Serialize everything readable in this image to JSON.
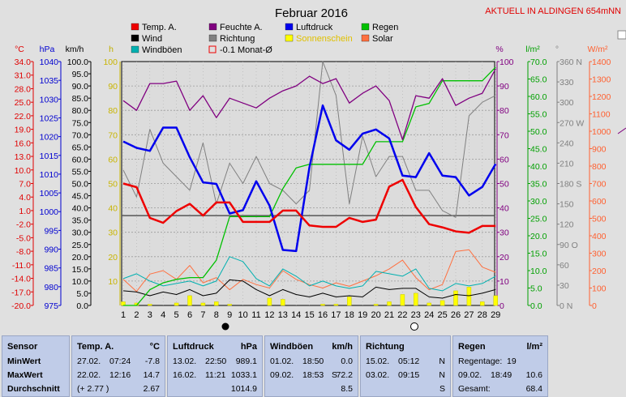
{
  "title": "Februar 2016",
  "station": "AKTUELL IN ALDINGEN 654mNN",
  "legend": [
    {
      "label": "Temp. A.",
      "color": "#ee0000"
    },
    {
      "label": "Wind",
      "color": "#000000"
    },
    {
      "label": "Windböen",
      "color": "#00b0b0"
    },
    {
      "label": "Feuchte A.",
      "color": "#800080"
    },
    {
      "label": "Richtung",
      "color": "#808080"
    },
    {
      "label": "-0.1 Monat-Ø",
      "color": "#ee0000"
    },
    {
      "label": "Luftdruck",
      "color": "#0000ee"
    },
    {
      "label": "Sonnenschein",
      "color": "#ffff00"
    },
    {
      "label": "Regen",
      "color": "#00c000"
    },
    {
      "label": "Solar",
      "color": "#ff7040"
    }
  ],
  "axis_units": {
    "temp": "°C",
    "press": "hPa",
    "wind": "km/h",
    "sun": "h",
    "hum": "%",
    "rain": "l/m²",
    "dir": "°",
    "solar": "W/m²"
  },
  "axes": {
    "temp_ticks": [
      "34.0",
      "31.0",
      "28.0",
      "25.0",
      "22.0",
      "19.0",
      "16.0",
      "13.0",
      "10.0",
      "7.0",
      "4.0",
      "1.0",
      "-2.0",
      "-5.0",
      "-8.0",
      "-11.0",
      "-14.0",
      "-17.0",
      "-20.0"
    ],
    "press_ticks": [
      "1040",
      "1035",
      "1030",
      "1025",
      "1020",
      "1015",
      "1010",
      "1005",
      "1000",
      "995",
      "990",
      "985",
      "980",
      "975"
    ],
    "wind_ticks": [
      "100.0",
      "95.0",
      "90.0",
      "85.0",
      "80.0",
      "75.0",
      "70.0",
      "65.0",
      "60.0",
      "55.0",
      "50.0",
      "45.0",
      "40.0",
      "35.0",
      "30.0",
      "25.0",
      "20.0",
      "15.0",
      "10.0",
      "5.0",
      "0.0"
    ],
    "sun_ticks": [
      "100",
      "90",
      "80",
      "70",
      "60",
      "50",
      "40",
      "30",
      "20",
      "10"
    ],
    "hum_ticks": [
      "100",
      "90",
      "80",
      "70",
      "60",
      "50",
      "40",
      "30",
      "20",
      "10",
      "0"
    ],
    "rain_ticks": [
      "70.0",
      "65.0",
      "60.0",
      "55.0",
      "50.0",
      "45.0",
      "40.0",
      "35.0",
      "30.0",
      "25.0",
      "20.0",
      "15.0",
      "10.0",
      "5.0",
      "0.0"
    ],
    "dir_ticks": [
      "360 N",
      "330",
      "300",
      "270 W",
      "240",
      "210",
      "180 S",
      "150",
      "120",
      "90 O",
      "60",
      "30",
      "0 N"
    ],
    "solar_ticks": [
      "1400",
      "1300",
      "1200",
      "1100",
      "1000",
      "900",
      "800",
      "700",
      "600",
      "500",
      "400",
      "300",
      "200",
      "100",
      "0"
    ],
    "day_labels": [
      "1",
      "2",
      "3",
      "4",
      "5",
      "6",
      "7",
      "8",
      "9",
      "10",
      "11",
      "12",
      "13",
      "14",
      "15",
      "16",
      "17",
      "18",
      "19",
      "20",
      "21",
      "22",
      "23",
      "24",
      "25",
      "26",
      "27",
      "28",
      "29"
    ]
  },
  "chart_data": {
    "type": "line",
    "x": [
      1,
      2,
      3,
      4,
      5,
      6,
      7,
      8,
      9,
      10,
      11,
      12,
      13,
      14,
      15,
      16,
      17,
      18,
      19,
      20,
      21,
      22,
      23,
      24,
      25,
      26,
      27,
      28,
      29
    ],
    "month_avg_temp": -0.1,
    "series": [
      {
        "name": "Temp. A.",
        "unit": "°C",
        "values": [
          7.0,
          6.2,
          -0.6,
          -1.7,
          0.9,
          2.5,
          -0.1,
          2.8,
          2.8,
          -1.5,
          -1.5,
          -1.5,
          1.0,
          1.0,
          -2.3,
          -2.6,
          -2.6,
          -0.6,
          -1.5,
          -1.0,
          6.3,
          7.8,
          1.8,
          -2.0,
          -2.7,
          -3.6,
          -3.9,
          -2.4,
          -2.4
        ]
      },
      {
        "name": "Feuchte A.",
        "unit": "%",
        "values": [
          84,
          80,
          91,
          91,
          92,
          80,
          86,
          77,
          85,
          83,
          81,
          85,
          88,
          90,
          94,
          91,
          93,
          83,
          87,
          90,
          84,
          68,
          86,
          85,
          93,
          82,
          85,
          87,
          97
        ]
      },
      {
        "name": "Luftdruck",
        "unit": "hPa",
        "values": [
          1018.7,
          1017.0,
          1016.2,
          1022.4,
          1022.4,
          1014.5,
          1007.8,
          1007.4,
          999.5,
          1000.4,
          1008.1,
          1001.6,
          989.8,
          989.5,
          1011.8,
          1028.3,
          1019.0,
          1016.5,
          1020.8,
          1021.9,
          1019.5,
          1009.6,
          1009.2,
          1015.6,
          1009.6,
          1009.2,
          1004.3,
          1006.6,
          1012.7
        ]
      },
      {
        "name": "Richtung",
        "unit": "°",
        "values": [
          200,
          160,
          260,
          210,
          190,
          170,
          240,
          150,
          210,
          180,
          220,
          180,
          170,
          150,
          170,
          360,
          310,
          150,
          250,
          190,
          220,
          220,
          170,
          170,
          140,
          130,
          280,
          300,
          310
        ]
      },
      {
        "name": "Regen",
        "unit": "l/m²",
        "values": [
          0.0,
          0.0,
          4.5,
          6.5,
          7.5,
          8.0,
          8.0,
          13.0,
          25.5,
          25.5,
          25.5,
          25.5,
          33.5,
          39.5,
          40.5,
          40.5,
          40.5,
          40.5,
          40.5,
          47.0,
          47.0,
          47.0,
          57.0,
          58.0,
          64.5,
          64.5,
          64.5,
          64.5,
          68.4
        ]
      },
      {
        "name": "Wind",
        "unit": "km/h",
        "values": [
          6.0,
          5.5,
          4.0,
          5.5,
          4.5,
          6.5,
          4.0,
          5.0,
          10.5,
          10.0,
          6.5,
          4.0,
          6.5,
          4.5,
          3.5,
          5.0,
          3.5,
          4.0,
          3.5,
          7.5,
          6.5,
          7.0,
          7.0,
          3.5,
          3.0,
          4.5,
          4.0,
          5.0,
          6.5
        ]
      },
      {
        "name": "Windböen",
        "unit": "km/h",
        "values": [
          11,
          13,
          10,
          8,
          9,
          10,
          8,
          10,
          20,
          18,
          11,
          8,
          15,
          12,
          8,
          10,
          8,
          7,
          8,
          14,
          13,
          12,
          15,
          7,
          6,
          9,
          8,
          9,
          12
        ]
      },
      {
        "name": "Solar",
        "unit": "W/m²",
        "values": [
          150,
          80,
          180,
          200,
          150,
          230,
          130,
          160,
          90,
          150,
          120,
          100,
          200,
          150,
          120,
          100,
          130,
          110,
          140,
          170,
          210,
          260,
          160,
          90,
          120,
          310,
          320,
          220,
          190
        ]
      },
      {
        "name": "Sonnenschein",
        "unit": "h",
        "values": [
          1.5,
          1.0,
          0.5,
          0.0,
          1.0,
          4.0,
          1.0,
          1.5,
          0.5,
          0.0,
          0.0,
          3.0,
          2.5,
          0.0,
          0.0,
          0.5,
          0.5,
          3.5,
          0.0,
          0.5,
          1.5,
          4.5,
          5.0,
          1.0,
          2.0,
          6.0,
          7.5,
          1.5,
          4.0
        ]
      }
    ]
  },
  "stats": {
    "row_labels": {
      "sensor": "Sensor",
      "min": "MinWert",
      "max": "MaxWert",
      "avg": "Durchschnitt"
    },
    "temp": {
      "header": "Temp. A.",
      "unit": "°C",
      "min_date": "27.02.",
      "min_time": "07:24",
      "min_val": "-7.8",
      "max_date": "22.02.",
      "max_time": "12:16",
      "max_val": "14.7",
      "avg_note": "(+ 2.77 )",
      "avg_val": "2.67"
    },
    "press": {
      "header": "Luftdruck",
      "unit": "hPa",
      "min_date": "13.02.",
      "min_time": "22:50",
      "min_val": "989.1",
      "max_date": "16.02.",
      "max_time": "11:21",
      "max_val": "1033.1",
      "avg_val": "1014.9"
    },
    "gust": {
      "header": "Windböen",
      "unit": "km/h",
      "min_date": "01.02.",
      "min_time": "18:50",
      "min_val": "0.0",
      "max_date": "09.02.",
      "max_time": "18:53",
      "max_dir": "S",
      "max_val": "72.2",
      "avg_val": "8.5"
    },
    "dir": {
      "header": "Richtung",
      "min_date": "15.02.",
      "min_time": "05:12",
      "min_val": "N",
      "max_date": "03.02.",
      "max_time": "09:15",
      "max_val": "N",
      "avg_val": "S"
    },
    "rain": {
      "header": "Regen",
      "unit": "l/m²",
      "days_label": "Regentage:",
      "days_val": "19",
      "max_date": "09.02.",
      "max_time": "18:49",
      "max_val": "10.6",
      "total_label": "Gesamt:",
      "total_val": "68.4"
    }
  }
}
